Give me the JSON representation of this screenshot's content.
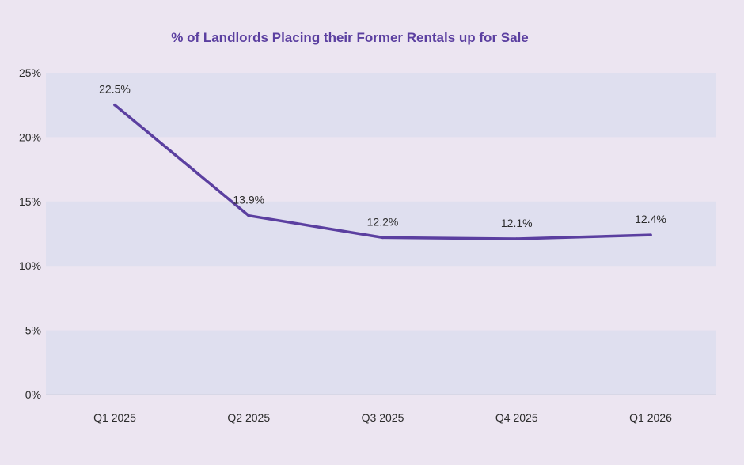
{
  "chart_data": {
    "type": "line",
    "title": "% of Landlords Placing their Former Rentals up for Sale",
    "categories": [
      "Q1 2025",
      "Q2 2025",
      "Q3 2025",
      "Q4 2025",
      "Q1 2026"
    ],
    "series": [
      {
        "name": "% of Landlords Placing their Former Rentals up for Sale",
        "values": [
          22.5,
          13.9,
          12.2,
          12.1,
          12.4
        ],
        "labels": [
          "22.5%",
          "13.9%",
          "12.2%",
          "12.1%",
          "12.4%"
        ]
      }
    ],
    "ylim": [
      0,
      25
    ],
    "yticks": [
      0,
      5,
      10,
      15,
      20,
      25
    ],
    "ytick_labels": [
      "0%",
      "5%",
      "10%",
      "15%",
      "20%",
      "25%"
    ],
    "xlabel": "",
    "ylabel": "",
    "grid": "alternating horizontal bands",
    "legend": "none"
  },
  "colors": {
    "background": "#ece5f1",
    "band": "#dfdfef",
    "line": "#5b3fa0",
    "title": "#5b3fa0",
    "text": "#2b2b2b"
  }
}
